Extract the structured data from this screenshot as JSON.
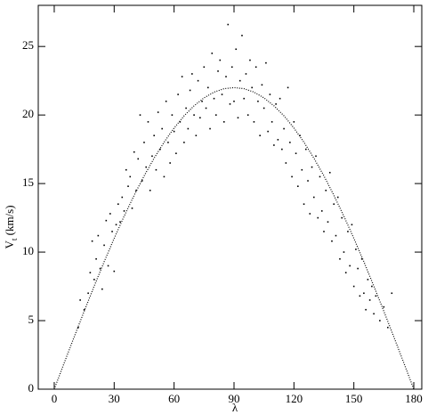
{
  "chart_data": {
    "type": "scatter",
    "xlabel": "λ",
    "ylabel": {
      "main": "V",
      "sub": "t",
      "rest": " (km/s)"
    },
    "xlim": [
      -8,
      184
    ],
    "ylim": [
      0,
      28
    ],
    "xticks": [
      0,
      30,
      60,
      90,
      120,
      150,
      180
    ],
    "yticks": [
      0,
      5,
      10,
      15,
      20,
      25
    ],
    "grid": false,
    "series": [
      {
        "color": "#000000",
        "marker": "point",
        "x": [
          12,
          13,
          15,
          17,
          18,
          19,
          20,
          21,
          22,
          23,
          24,
          25,
          26,
          27,
          28,
          29,
          30,
          31,
          32,
          33,
          34,
          35,
          36,
          37,
          38,
          39,
          40,
          41,
          42,
          43,
          44,
          45,
          46,
          47,
          48,
          49,
          50,
          51,
          52,
          53,
          54,
          55,
          56,
          57,
          58,
          59,
          60,
          61,
          62,
          63,
          64,
          65,
          66,
          67,
          68,
          69,
          70,
          71,
          72,
          73,
          74,
          75,
          76,
          77,
          78,
          79,
          80,
          81,
          82,
          83,
          84,
          85,
          86,
          87,
          88,
          89,
          90,
          91,
          92,
          93,
          94,
          95,
          96,
          97,
          98,
          99,
          100,
          101,
          102,
          103,
          104,
          105,
          106,
          107,
          108,
          109,
          110,
          111,
          112,
          113,
          114,
          115,
          116,
          117,
          118,
          119,
          120,
          121,
          122,
          123,
          124,
          125,
          126,
          127,
          128,
          129,
          130,
          131,
          132,
          133,
          134,
          135,
          136,
          137,
          138,
          139,
          140,
          141,
          142,
          143,
          144,
          145,
          146,
          147,
          148,
          149,
          150,
          151,
          152,
          153,
          154,
          155,
          156,
          157,
          158,
          159,
          160,
          161,
          163,
          165,
          167,
          169
        ],
        "values": [
          4.5,
          6.5,
          5.8,
          7.0,
          8.5,
          10.8,
          8.0,
          9.5,
          11.2,
          8.8,
          7.3,
          10.5,
          12.3,
          9.0,
          12.8,
          11.5,
          8.6,
          12.0,
          13.5,
          12.2,
          14.0,
          13.0,
          16.0,
          14.8,
          15.5,
          13.2,
          17.3,
          14.5,
          16.8,
          20.0,
          15.2,
          18.0,
          16.2,
          19.5,
          14.5,
          17.0,
          18.5,
          16.0,
          20.2,
          17.5,
          19.0,
          15.5,
          21.0,
          18.0,
          16.5,
          20.0,
          18.8,
          17.2,
          21.5,
          19.5,
          22.8,
          18.0,
          20.5,
          19.0,
          21.8,
          23.0,
          20.0,
          18.5,
          22.5,
          19.8,
          21.0,
          23.5,
          20.5,
          22.0,
          19.0,
          24.5,
          21.2,
          20.0,
          23.2,
          24.0,
          21.5,
          19.5,
          22.8,
          26.6,
          20.8,
          23.5,
          21.0,
          24.8,
          19.8,
          22.5,
          25.8,
          21.2,
          23.0,
          20.0,
          24.0,
          22.0,
          19.5,
          23.5,
          21.0,
          18.5,
          22.2,
          20.5,
          23.8,
          18.8,
          21.5,
          19.5,
          17.8,
          20.8,
          18.2,
          21.2,
          17.5,
          19.0,
          16.5,
          22.0,
          18.0,
          15.5,
          19.5,
          17.2,
          14.8,
          18.5,
          16.0,
          13.5,
          17.5,
          15.2,
          12.8,
          16.2,
          14.0,
          17.0,
          12.5,
          15.5,
          13.0,
          11.5,
          14.5,
          12.2,
          15.8,
          10.8,
          13.5,
          11.2,
          14.0,
          9.5,
          12.5,
          10.0,
          8.5,
          11.5,
          9.0,
          12.0,
          7.5,
          10.2,
          8.8,
          6.8,
          9.5,
          7.0,
          5.8,
          8.0,
          6.5,
          7.5,
          5.5,
          6.8,
          5.0,
          6.0,
          4.5,
          7.0
        ]
      },
      {
        "color": "#000000",
        "marker": "dotted-line",
        "x": [
          0,
          5,
          10,
          15,
          20,
          25,
          30,
          35,
          40,
          45,
          50,
          55,
          60,
          65,
          70,
          75,
          80,
          85,
          90,
          95,
          100,
          105,
          110,
          115,
          120,
          125,
          130,
          135,
          140,
          145,
          150,
          155,
          160,
          165,
          170,
          175,
          180
        ],
        "values": [
          0,
          1.92,
          3.82,
          5.69,
          7.52,
          9.3,
          11.0,
          12.62,
          14.14,
          15.56,
          16.85,
          18.02,
          19.05,
          19.94,
          20.67,
          21.25,
          21.67,
          21.92,
          22,
          21.92,
          21.67,
          21.25,
          20.67,
          19.94,
          19.05,
          18.02,
          16.85,
          15.56,
          14.14,
          12.62,
          11.0,
          9.3,
          7.52,
          5.69,
          3.82,
          1.92,
          0
        ]
      }
    ]
  }
}
